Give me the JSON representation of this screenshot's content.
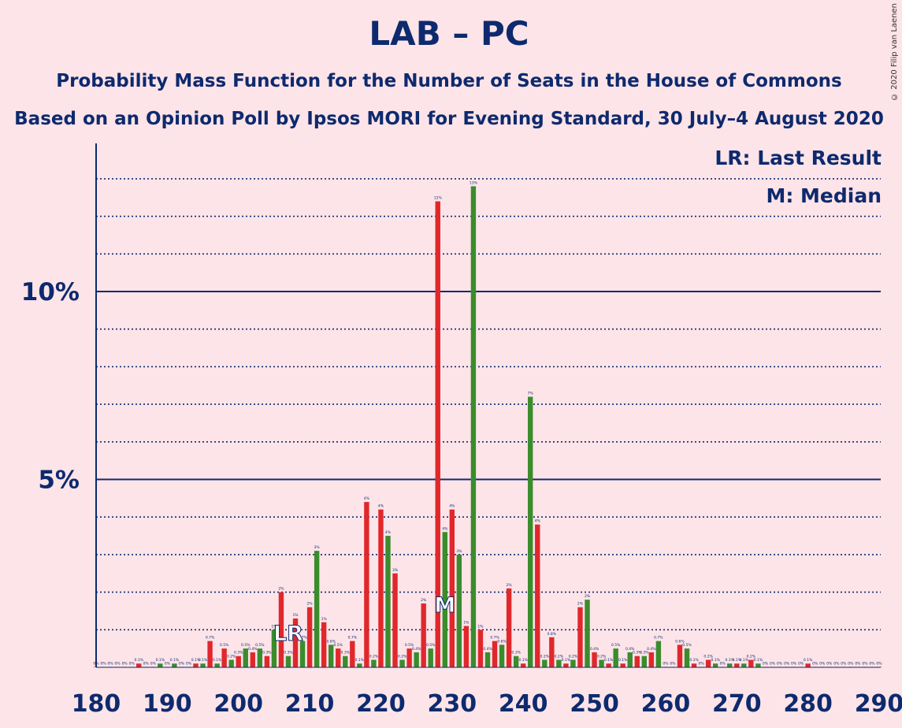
{
  "header": {
    "title": "LAB – PC",
    "subtitle1": "Probability Mass Function for the Number of Seats in the House of Commons",
    "subtitle2": "Based on an Opinion Poll by Ipsos MORI for Evening Standard, 30 July–4 August 2020",
    "copyright": "© 2020 Filip van Laenen"
  },
  "legend": {
    "last_result": "LR: Last Result",
    "median": "M: Median"
  },
  "colors": {
    "background": "#fde4e8",
    "red": "#e0282c",
    "green": "#3a8c2c",
    "text": "#0e2a6e"
  },
  "chart_data": {
    "type": "bar",
    "xlim": [
      180,
      290
    ],
    "ylim": [
      0,
      14
    ],
    "x_ticks": [
      180,
      190,
      200,
      210,
      220,
      230,
      240,
      250,
      260,
      270,
      280,
      290
    ],
    "y_ticks": [
      {
        "value": 5,
        "label": "5%"
      },
      {
        "value": 10,
        "label": "10%"
      }
    ],
    "last_result_seat": 207,
    "last_result_marker": "LR",
    "median_seat": 229,
    "median_marker": "M",
    "series": [
      {
        "color": "red",
        "points": [
          [
            180,
            0
          ],
          [
            182,
            0
          ],
          [
            184,
            0
          ],
          [
            186,
            0.1
          ],
          [
            188,
            0
          ],
          [
            190,
            0
          ],
          [
            192,
            0
          ],
          [
            194,
            0.1
          ],
          [
            196,
            0.7
          ],
          [
            198,
            0.5
          ],
          [
            200,
            0.3
          ],
          [
            202,
            0.4
          ],
          [
            204,
            0.3
          ],
          [
            206,
            2.0
          ],
          [
            208,
            1.3
          ],
          [
            210,
            1.6
          ],
          [
            212,
            1.2
          ],
          [
            214,
            0.5
          ],
          [
            216,
            0.7
          ],
          [
            218,
            4.4
          ],
          [
            220,
            4.2
          ],
          [
            222,
            2.5
          ],
          [
            224,
            0.5
          ],
          [
            226,
            1.7
          ],
          [
            228,
            12.4
          ],
          [
            230,
            4.2
          ],
          [
            232,
            1.1
          ],
          [
            234,
            1.0
          ],
          [
            236,
            0.7
          ],
          [
            238,
            2.1
          ],
          [
            240,
            0.1
          ],
          [
            242,
            3.8
          ],
          [
            244,
            0.8
          ],
          [
            246,
            0.1
          ],
          [
            248,
            1.6
          ],
          [
            250,
            0.4
          ],
          [
            252,
            0.1
          ],
          [
            254,
            0.1
          ],
          [
            256,
            0.3
          ],
          [
            258,
            0.4
          ],
          [
            260,
            0
          ],
          [
            262,
            0.6
          ],
          [
            264,
            0.1
          ],
          [
            266,
            0.2
          ],
          [
            268,
            0
          ],
          [
            270,
            0.1
          ],
          [
            272,
            0.2
          ],
          [
            274,
            0
          ],
          [
            276,
            0
          ],
          [
            278,
            0
          ],
          [
            280,
            0.1
          ],
          [
            282,
            0
          ],
          [
            284,
            0
          ],
          [
            286,
            0
          ],
          [
            288,
            0
          ],
          [
            290,
            0
          ]
        ]
      },
      {
        "color": "green",
        "points": [
          [
            181,
            0
          ],
          [
            183,
            0
          ],
          [
            185,
            0
          ],
          [
            187,
            0
          ],
          [
            189,
            0.1
          ],
          [
            191,
            0.1
          ],
          [
            193,
            0
          ],
          [
            195,
            0.1
          ],
          [
            197,
            0.1
          ],
          [
            199,
            0.2
          ],
          [
            201,
            0.5
          ],
          [
            203,
            0.5
          ],
          [
            205,
            1.0
          ],
          [
            207,
            0.3
          ],
          [
            209,
            0.7
          ],
          [
            211,
            3.1
          ],
          [
            213,
            0.6
          ],
          [
            215,
            0.3
          ],
          [
            217,
            0.1
          ],
          [
            219,
            0.2
          ],
          [
            221,
            3.5
          ],
          [
            223,
            0.2
          ],
          [
            225,
            0.4
          ],
          [
            227,
            0.5
          ],
          [
            229,
            3.6
          ],
          [
            231,
            3.0
          ],
          [
            233,
            12.8
          ],
          [
            235,
            0.4
          ],
          [
            237,
            0.6
          ],
          [
            239,
            0.3
          ],
          [
            241,
            7.2
          ],
          [
            243,
            0.2
          ],
          [
            245,
            0.2
          ],
          [
            247,
            0.2
          ],
          [
            249,
            1.8
          ],
          [
            251,
            0.2
          ],
          [
            253,
            0.5
          ],
          [
            255,
            0.4
          ],
          [
            257,
            0.3
          ],
          [
            259,
            0.7
          ],
          [
            261,
            0
          ],
          [
            263,
            0.5
          ],
          [
            265,
            0
          ],
          [
            267,
            0.1
          ],
          [
            269,
            0.1
          ],
          [
            271,
            0.1
          ],
          [
            273,
            0.1
          ],
          [
            275,
            0
          ],
          [
            277,
            0
          ],
          [
            279,
            0
          ],
          [
            281,
            0
          ],
          [
            283,
            0
          ],
          [
            285,
            0
          ],
          [
            287,
            0
          ],
          [
            289,
            0
          ]
        ]
      }
    ]
  }
}
